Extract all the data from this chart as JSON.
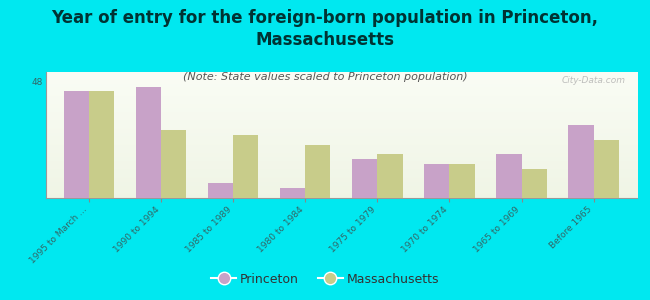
{
  "title": "Year of entry for the foreign-born population in Princeton,\nMassachusetts",
  "subtitle": "(Note: State values scaled to Princeton population)",
  "categories": [
    "1995 to March ...",
    "1990 to 1994",
    "1985 to 1989",
    "1980 to 1984",
    "1975 to 1979",
    "1970 to 1974",
    "1965 to 1969",
    "Before 1965"
  ],
  "princeton_values": [
    44,
    46,
    6,
    4,
    16,
    14,
    18,
    30
  ],
  "massachusetts_values": [
    44,
    28,
    26,
    22,
    18,
    14,
    12,
    24
  ],
  "princeton_color": "#c8a2c8",
  "massachusetts_color": "#c8cc8a",
  "background_outer": "#00e8f0",
  "ylim": [
    0,
    52
  ],
  "yticks": [
    0,
    48
  ],
  "bar_width": 0.35,
  "title_fontsize": 12,
  "subtitle_fontsize": 8,
  "tick_fontsize": 6.5,
  "legend_fontsize": 9,
  "watermark": "City-Data.com",
  "title_color": "#003333",
  "subtitle_color": "#555555",
  "tick_color": "#336666"
}
